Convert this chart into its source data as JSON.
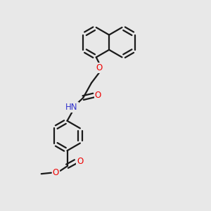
{
  "bg_color": "#e8e8e8",
  "bond_color": "#1a1a1a",
  "bond_width": 1.6,
  "atom_colors": {
    "O": "#ee0000",
    "N": "#3333cc",
    "C": "#1a1a1a"
  },
  "font_size": 8.5,
  "fig_size": [
    3.0,
    3.0
  ],
  "dpi": 100
}
